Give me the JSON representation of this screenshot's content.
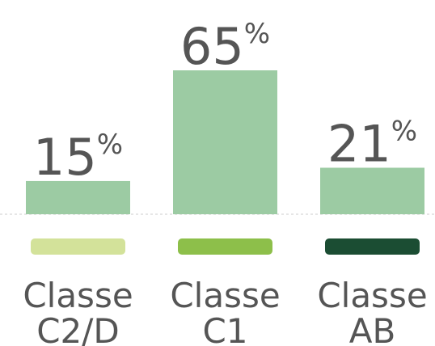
{
  "chart_data": {
    "type": "bar",
    "categories": [
      "Classe C2/D",
      "Classe C1",
      "Classe AB"
    ],
    "values": [
      15,
      65,
      21
    ],
    "value_labels": [
      "15%",
      "65%",
      "21%"
    ],
    "color": "#9ccba3",
    "swatch_colors": [
      "#d3e29a",
      "#8dbf4a",
      "#1b4d33"
    ]
  }
}
